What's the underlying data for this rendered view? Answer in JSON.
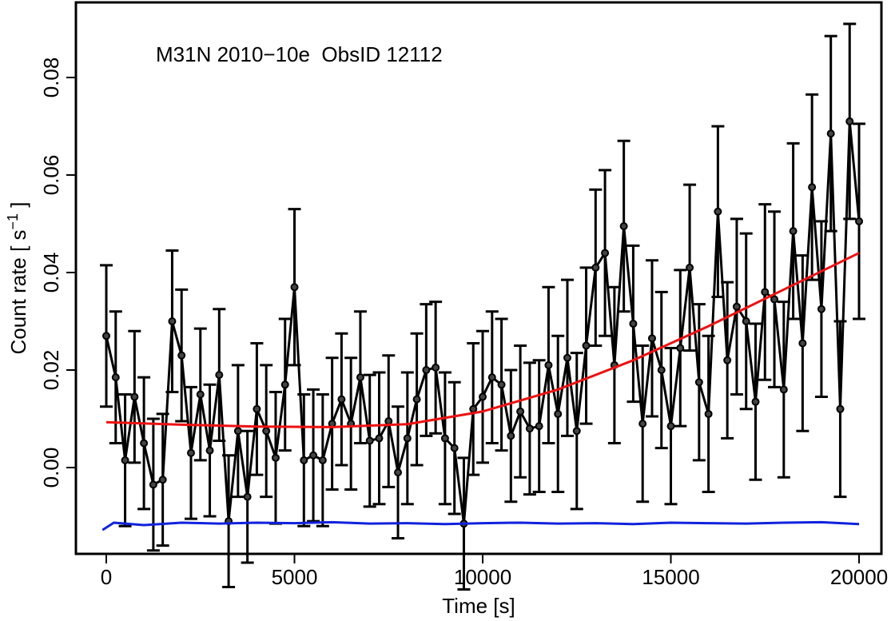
{
  "chart_data": {
    "type": "line",
    "annotation": "M31N 2010−10e  ObsID 12112",
    "xlabel": "Time [s]",
    "ylabel": {
      "text": "Count rate [ s",
      "superscript": "−1",
      "suffix": " ]"
    },
    "xlim": [
      -807,
      20594
    ],
    "ylim": [
      -0.0177,
      0.0954
    ],
    "xticks": [
      0,
      5000,
      10000,
      15000,
      20000
    ],
    "yticks": [
      {
        "value": 0,
        "label": "0.00"
      },
      {
        "value": 0.02,
        "label": "0.02"
      },
      {
        "value": 0.04,
        "label": "0.04"
      },
      {
        "value": 0.06,
        "label": "0.06"
      },
      {
        "value": 0.08,
        "label": "0.08"
      }
    ],
    "series": [
      {
        "color": "#000000",
        "markers": true,
        "x": [
          0,
          250,
          500,
          750,
          1000,
          1250,
          1500,
          1750,
          2000,
          2250,
          2500,
          2750,
          3000,
          3250,
          3500,
          3750,
          4000,
          4250,
          4500,
          4750,
          5000,
          5250,
          5500,
          5750,
          6000,
          6250,
          6500,
          6750,
          7000,
          7250,
          7500,
          7750,
          8000,
          8250,
          8500,
          8750,
          9000,
          9250,
          9500,
          9750,
          10000,
          10250,
          10500,
          10750,
          11000,
          11250,
          11500,
          11750,
          12000,
          12250,
          12500,
          12750,
          13000,
          13250,
          13500,
          13750,
          14000,
          14250,
          14500,
          14750,
          15000,
          15250,
          15500,
          15750,
          16000,
          16250,
          16500,
          16750,
          17000,
          17250,
          17500,
          17750,
          18000,
          18250,
          18500,
          18750,
          19000,
          19250,
          19500,
          19750,
          20000
        ],
        "values": [
          0.027,
          0.0185,
          0.0015,
          0.0145,
          0.005,
          -0.0035,
          -0.0025,
          0.03,
          0.023,
          0.003,
          0.015,
          0.0035,
          0.019,
          -0.011,
          0.0075,
          -0.006,
          0.012,
          0.0075,
          0.002,
          0.017,
          0.037,
          0.0015,
          0.0025,
          0.0015,
          0.009,
          0.014,
          0.009,
          0.0185,
          0.0055,
          0.006,
          0.0095,
          -0.001,
          0.006,
          0.014,
          0.02,
          0.0205,
          0.006,
          0.004,
          -0.0115,
          0.012,
          0.0145,
          0.0185,
          0.017,
          0.0065,
          0.0115,
          0.008,
          0.0085,
          0.021,
          0.011,
          0.0225,
          0.0075,
          0.025,
          0.041,
          0.044,
          0.021,
          0.0495,
          0.0295,
          0.009,
          0.0265,
          0.02,
          0.0085,
          0.0245,
          0.041,
          0.0175,
          0.011,
          0.0525,
          0.022,
          0.033,
          0.03,
          0.0135,
          0.036,
          0.0345,
          0.016,
          0.0485,
          0.0255,
          0.0575,
          0.0325,
          0.0685,
          0.012,
          0.071,
          0.0505
        ],
        "errors": [
          0.0145,
          0.0135,
          0.0135,
          0.0135,
          0.0135,
          0.0135,
          0.0135,
          0.0145,
          0.0135,
          0.0135,
          0.0135,
          0.0135,
          0.0135,
          0.0135,
          0.0135,
          0.0135,
          0.0135,
          0.0135,
          0.0135,
          0.0135,
          0.016,
          0.0135,
          0.0135,
          0.0135,
          0.0135,
          0.0135,
          0.0135,
          0.0135,
          0.0135,
          0.0135,
          0.0135,
          0.0135,
          0.0135,
          0.0135,
          0.0135,
          0.0135,
          0.0135,
          0.0135,
          0.0135,
          0.0135,
          0.0135,
          0.0135,
          0.0135,
          0.0135,
          0.0135,
          0.0135,
          0.0135,
          0.016,
          0.016,
          0.016,
          0.016,
          0.016,
          0.016,
          0.017,
          0.016,
          0.0175,
          0.016,
          0.016,
          0.016,
          0.016,
          0.016,
          0.016,
          0.017,
          0.016,
          0.016,
          0.0175,
          0.016,
          0.018,
          0.018,
          0.016,
          0.018,
          0.018,
          0.018,
          0.018,
          0.018,
          0.019,
          0.018,
          0.02,
          0.018,
          0.02,
          0.02
        ]
      },
      {
        "color": "#ee1111",
        "markers": false,
        "x": [
          0,
          2000,
          4000,
          6000,
          8000,
          10000,
          12000,
          14000,
          16000,
          18000,
          20000
        ],
        "values": [
          0.0093,
          0.0088,
          0.0084,
          0.0083,
          0.0089,
          0.0115,
          0.016,
          0.022,
          0.029,
          0.0365,
          0.044
        ]
      },
      {
        "color": "#1122dd",
        "markers": false,
        "x": [
          -100,
          200,
          1000,
          2000,
          3000,
          4000,
          5000,
          6000,
          7000,
          8000,
          9000,
          10000,
          11000,
          12000,
          13000,
          14000,
          15000,
          16000,
          17000,
          18000,
          19000,
          20000
        ],
        "values": [
          -0.0128,
          -0.0113,
          -0.0118,
          -0.0113,
          -0.0115,
          -0.0113,
          -0.0114,
          -0.0112,
          -0.0115,
          -0.0114,
          -0.0116,
          -0.0114,
          -0.0113,
          -0.0115,
          -0.0114,
          -0.0116,
          -0.0113,
          -0.0114,
          -0.0115,
          -0.0113,
          -0.0112,
          -0.0116
        ]
      }
    ]
  }
}
